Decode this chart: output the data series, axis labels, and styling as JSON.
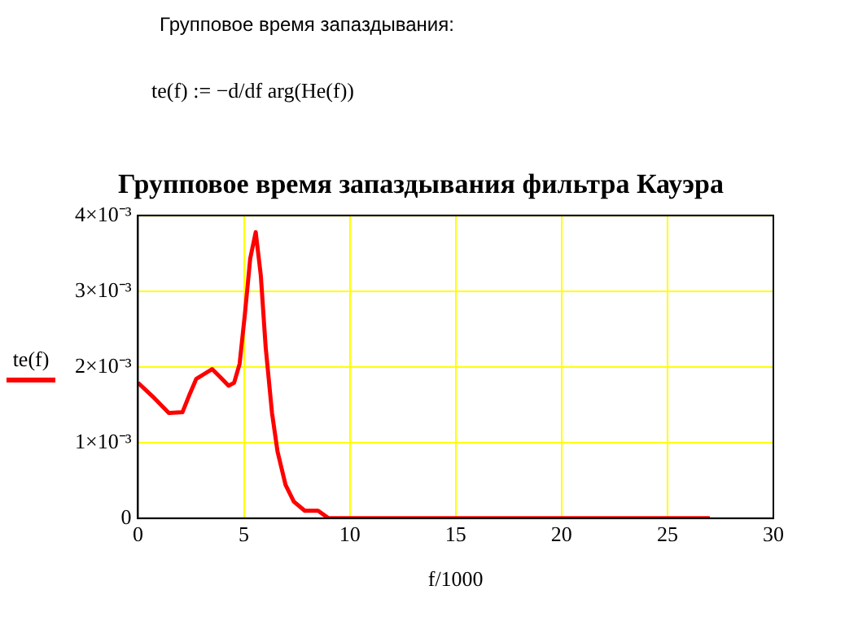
{
  "chart_data": {
    "type": "line",
    "title": "Групповое время запаздывания фильтра Кауэра",
    "annotations": [
      "Групповое время запаздывания:",
      "te(f) := −d/df arg(He(f))"
    ],
    "xlabel": "f/1000",
    "x": [
      0,
      0.69,
      1.46,
      2.1,
      2.4,
      2.75,
      3.5,
      3.9,
      4.28,
      4.54,
      4.8,
      5.05,
      5.3,
      5.56,
      5.8,
      6.03,
      6.33,
      6.59,
      6.97,
      7.36,
      7.87,
      8.5,
      9,
      27
    ],
    "series": [
      {
        "name": "te(f)",
        "color": "#ff0000",
        "values": [
          0.00179,
          0.00161,
          0.00139,
          0.0014,
          0.00161,
          0.00184,
          0.00197,
          0.00186,
          0.00175,
          0.00179,
          0.00204,
          0.0027,
          0.00343,
          0.00378,
          0.00321,
          0.00226,
          0.00139,
          0.00088,
          0.00044,
          0.00022,
          0.0001,
          0.0001,
          0,
          0
        ]
      }
    ],
    "xlim": [
      0,
      30
    ],
    "xticks": [
      0,
      5,
      10,
      15,
      20,
      25,
      30
    ],
    "ylim": [
      0,
      0.004
    ],
    "yticks": [
      0,
      {
        "value": 0.001,
        "label": "1×10⁻³"
      },
      {
        "value": 0.002,
        "label": "2×10⁻³"
      },
      {
        "value": 0.003,
        "label": "3×10⁻³"
      },
      {
        "value": 0.004,
        "label": "4×10⁻³"
      }
    ],
    "grid": true,
    "legend": "left",
    "marker": "none",
    "line_style": "solid"
  }
}
